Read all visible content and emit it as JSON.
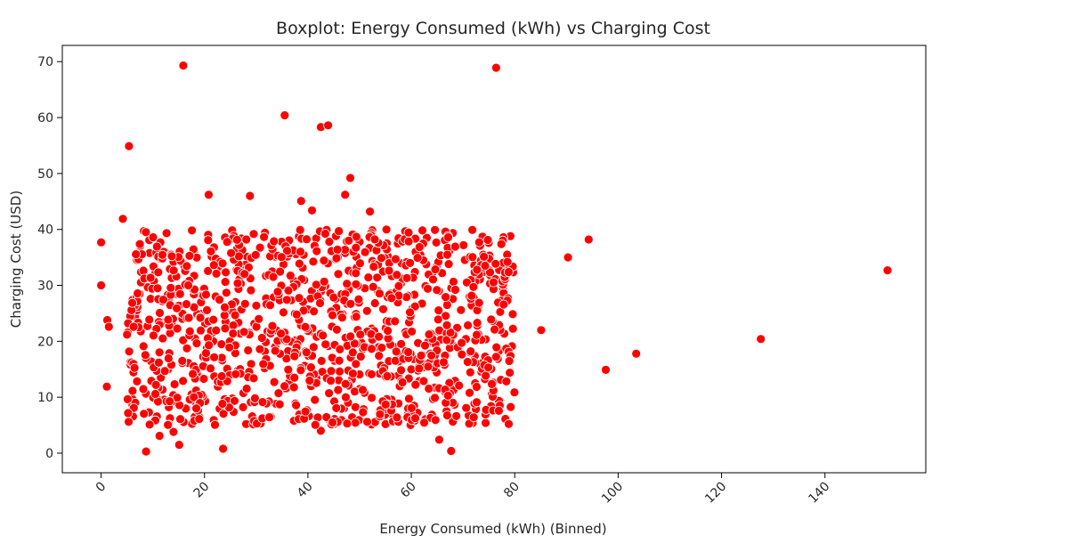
{
  "chart_data": {
    "type": "scatter",
    "title": "Boxplot: Energy Consumed (kWh) vs Charging Cost",
    "xlabel": "Energy Consumed (kWh) (Binned)",
    "ylabel": "Charging Cost (USD)",
    "xlim": [
      -7.5,
      159.5
    ],
    "ylim": [
      -3.5,
      72.9
    ],
    "x_ticks": [
      0,
      20,
      40,
      60,
      80,
      100,
      120,
      140
    ],
    "y_ticks": [
      0,
      10,
      20,
      30,
      40,
      50,
      60,
      70
    ],
    "grid": false,
    "marker_color": "#ff0000",
    "marker_edge_color": "#ffffff",
    "cluster": {
      "description_note": "",
      "x_range": [
        5,
        80
      ],
      "y_range": [
        5,
        40
      ],
      "approx_point_count": 1100
    },
    "points": [
      {
        "x": 15.9,
        "y": 69.3
      },
      {
        "x": 76.4,
        "y": 68.9
      },
      {
        "x": 35.5,
        "y": 60.4
      },
      {
        "x": 42.5,
        "y": 58.3
      },
      {
        "x": 43.9,
        "y": 58.6
      },
      {
        "x": 5.4,
        "y": 54.9
      },
      {
        "x": 48.2,
        "y": 49.2
      },
      {
        "x": 20.8,
        "y": 46.2
      },
      {
        "x": 28.8,
        "y": 46.0
      },
      {
        "x": 47.2,
        "y": 46.2
      },
      {
        "x": 38.7,
        "y": 45.1
      },
      {
        "x": 40.8,
        "y": 43.4
      },
      {
        "x": 52.0,
        "y": 43.2
      },
      {
        "x": 4.2,
        "y": 41.9
      },
      {
        "x": 0.0,
        "y": 37.7
      },
      {
        "x": 0.0,
        "y": 30.0
      },
      {
        "x": 1.2,
        "y": 23.8
      },
      {
        "x": 1.5,
        "y": 22.6
      },
      {
        "x": 1.1,
        "y": 11.9
      },
      {
        "x": 8.7,
        "y": 0.3
      },
      {
        "x": 15.1,
        "y": 1.5
      },
      {
        "x": 14.0,
        "y": 3.8
      },
      {
        "x": 11.3,
        "y": 3.1
      },
      {
        "x": 23.6,
        "y": 0.8
      },
      {
        "x": 65.4,
        "y": 2.4
      },
      {
        "x": 67.7,
        "y": 0.4
      },
      {
        "x": 42.5,
        "y": 4.0
      },
      {
        "x": 85.1,
        "y": 22.0
      },
      {
        "x": 90.3,
        "y": 35.0
      },
      {
        "x": 94.3,
        "y": 38.2
      },
      {
        "x": 97.6,
        "y": 14.9
      },
      {
        "x": 103.5,
        "y": 17.8
      },
      {
        "x": 127.6,
        "y": 20.4
      },
      {
        "x": 152.1,
        "y": 32.7
      }
    ]
  }
}
